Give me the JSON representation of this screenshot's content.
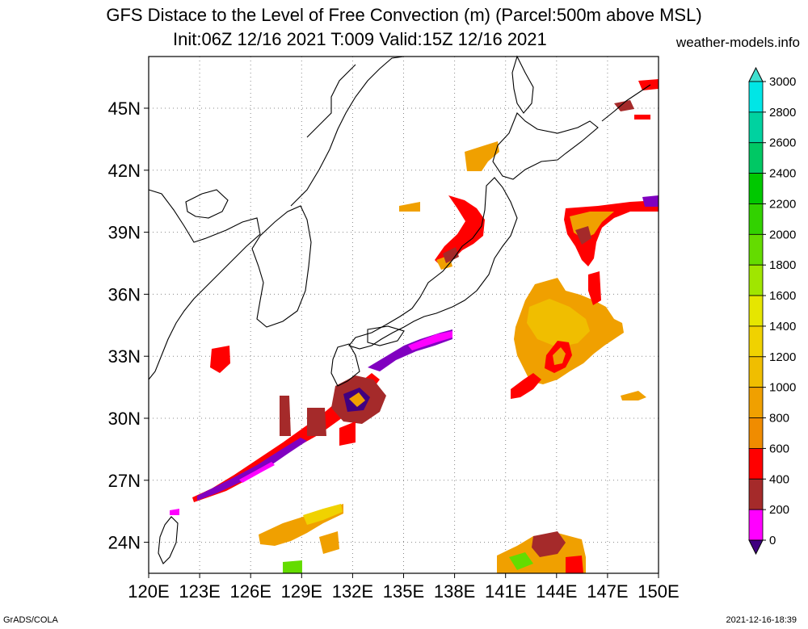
{
  "title": {
    "line1": "GFS Distace to the Level of Free Convection (m) (Parcel:500m above MSL)",
    "line2": "Init:06Z 12/16 2021 T:009 Valid:15Z 12/16 2021",
    "site": "weather-models.info"
  },
  "footer": {
    "left": "GrADS/COLA",
    "right": "2021-12-16-18:39"
  },
  "map": {
    "lon_ticks": [
      "120E",
      "123E",
      "126E",
      "129E",
      "132E",
      "135E",
      "138E",
      "141E",
      "144E",
      "147E",
      "150E"
    ],
    "lat_ticks": [
      "45N",
      "42N",
      "39N",
      "36N",
      "33N",
      "30N",
      "27N",
      "24N"
    ],
    "lon_range": [
      120,
      150
    ],
    "lat_range": [
      22.5,
      47.5
    ],
    "grid": "dotted"
  },
  "colorbar": {
    "labels": [
      "3000",
      "2800",
      "2600",
      "2400",
      "2200",
      "2000",
      "1800",
      "1600",
      "1400",
      "1200",
      "1000",
      "800",
      "600",
      "400",
      "200",
      "0"
    ],
    "colors": [
      "#00e6e6",
      "#00d2a0",
      "#00c864",
      "#00c800",
      "#32d200",
      "#64dc00",
      "#a0e600",
      "#e6e600",
      "#f0d200",
      "#f0be00",
      "#f0a000",
      "#f08c00",
      "#ff0000",
      "#a52a2a",
      "#ff00ff",
      "#400080"
    ],
    "arrow_top_color": "#40e0d0",
    "arrow_bottom_color": "#400080"
  }
}
